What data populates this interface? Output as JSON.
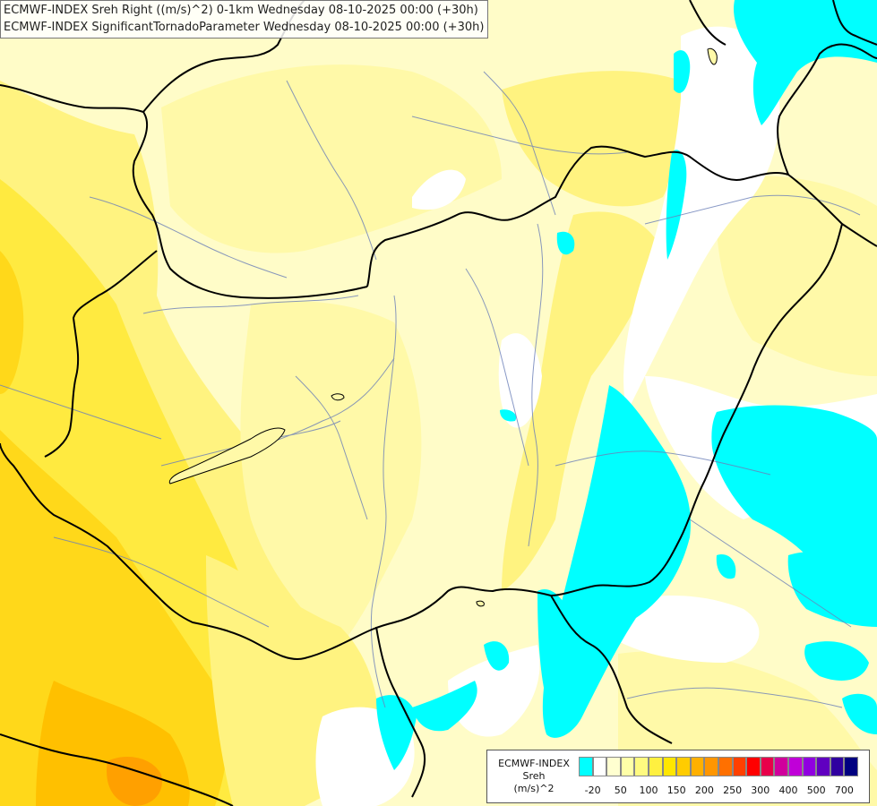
{
  "title": {
    "line1": "ECMWF-INDEX Sreh Right ((m/s)^2) 0-1km Wednesday 08-10-2025 00:00 (+30h)",
    "line2": "ECMWF-INDEX SignificantTornadoParameter Wednesday 08-10-2025 00:00 (+30h)"
  },
  "legend": {
    "source": "ECMWF-INDEX",
    "variable": "Sreh",
    "unit": "(m/s)^2",
    "colors": [
      "#00ffff",
      "#ffffff",
      "#ffffd0",
      "#ffffa8",
      "#fffa80",
      "#fff040",
      "#ffe600",
      "#ffcc00",
      "#ffb000",
      "#ff9600",
      "#ff7000",
      "#ff4000",
      "#ff0000",
      "#e8004a",
      "#d0009c",
      "#c000d8",
      "#9000e0",
      "#6000c0",
      "#3000a0",
      "#000080"
    ],
    "ticks": [
      "-20",
      "50",
      "100",
      "150",
      "200",
      "250",
      "300",
      "400",
      "500",
      "700"
    ]
  },
  "map": {
    "colors": {
      "base": "#fffcc8",
      "pale": "#fff9a8",
      "light": "#fff380",
      "mid": "#ffea40",
      "strong": "#ffd81a",
      "deep": "#ffc000",
      "orange": "#ffa000",
      "white": "#ffffff",
      "cyan": "#00ffff",
      "border": "#000000",
      "river": "#6b7fb8"
    }
  }
}
